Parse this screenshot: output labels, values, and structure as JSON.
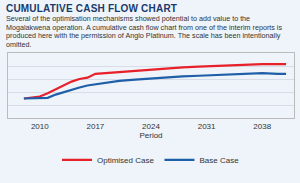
{
  "chart_data": {
    "type": "line",
    "title": "CUMULATIVE CASH FLOW CHART",
    "subtitle": "Several of the optimisation mechanisms showed potential to add value to the Mogalakwena operation. A cumulative cash flow chart from one of the interim reports is produced here with the permission of Anglo Platinum. The scale has been intentionally omitted.",
    "x_label": "Period",
    "x": [
      2008,
      2010,
      2011,
      2012,
      2013,
      2014,
      2015,
      2016,
      2017,
      2018,
      2020,
      2022,
      2024,
      2026,
      2028,
      2030,
      2032,
      2034,
      2036,
      2038,
      2040,
      2041
    ],
    "series": [
      {
        "name": "Optimised Case",
        "color": "#e8202a",
        "values": [
          30,
          33,
          38,
          44,
          50,
          56,
          60,
          62,
          68,
          69,
          70,
          72,
          74,
          76,
          78,
          79,
          80,
          82,
          82,
          83,
          83,
          83
        ]
      },
      {
        "name": "Base Case",
        "color": "#1f5fa8",
        "values": [
          30,
          30,
          31,
          36,
          40,
          44,
          47,
          50,
          52,
          54,
          57,
          59,
          61,
          62,
          64,
          65,
          66,
          67,
          68,
          69,
          68,
          68
        ]
      }
    ],
    "xlim": [
      2006,
      2042
    ],
    "xticks": [
      2010,
      2017,
      2024,
      2031,
      2038
    ],
    "ylim": [
      0,
      100
    ],
    "yticks": [
      0,
      20,
      40,
      60,
      80,
      100
    ],
    "grid": true,
    "legend": "bottom",
    "tick_labels": "x"
  }
}
